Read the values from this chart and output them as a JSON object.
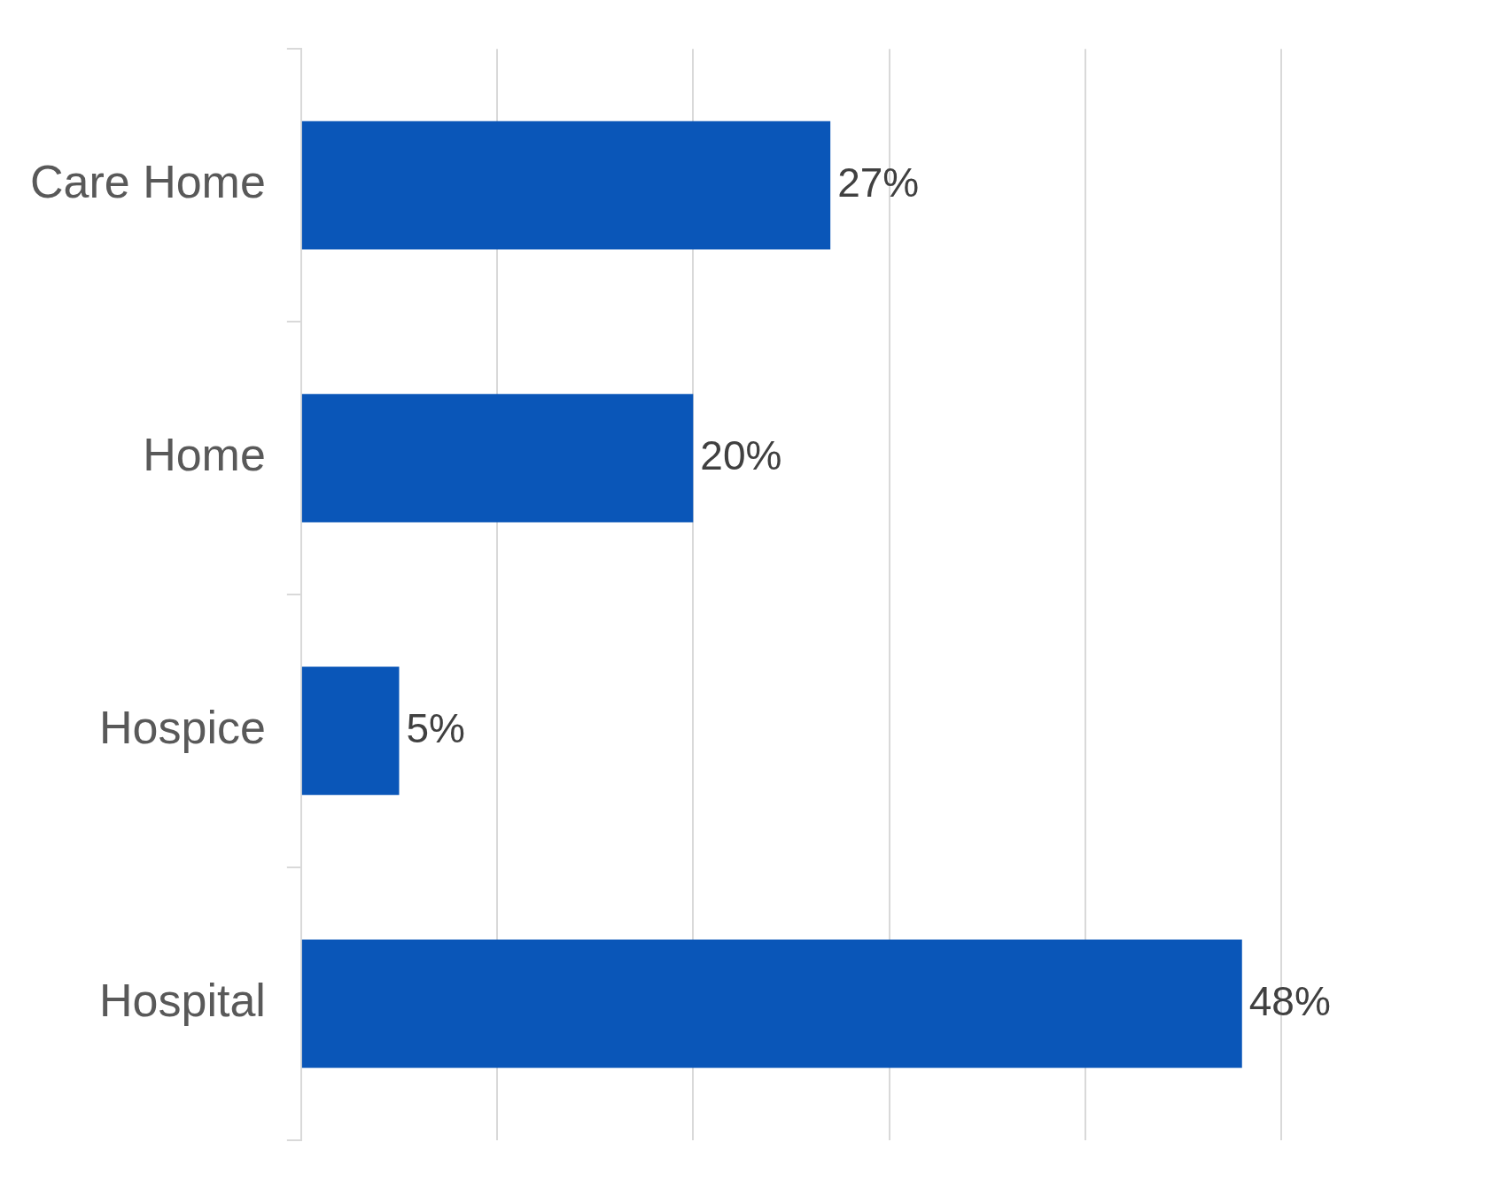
{
  "chart_data": {
    "type": "bar",
    "orientation": "horizontal",
    "categories": [
      "Care Home",
      "Home",
      "Hospice",
      "Hospital"
    ],
    "values": [
      27,
      20,
      5,
      48
    ],
    "color": "#0a56b8",
    "value_labels": [
      "27%",
      "20%",
      "5%",
      "48%"
    ],
    "xticks": [
      {
        "value": 0,
        "label": null
      },
      {
        "value": 10,
        "label": null
      },
      {
        "value": 20,
        "label": null
      },
      {
        "value": 30,
        "label": null
      },
      {
        "value": 40,
        "label": null
      },
      {
        "value": 50,
        "label": null
      }
    ],
    "grid": "x",
    "tick_labels": "y",
    "legend": false
  }
}
